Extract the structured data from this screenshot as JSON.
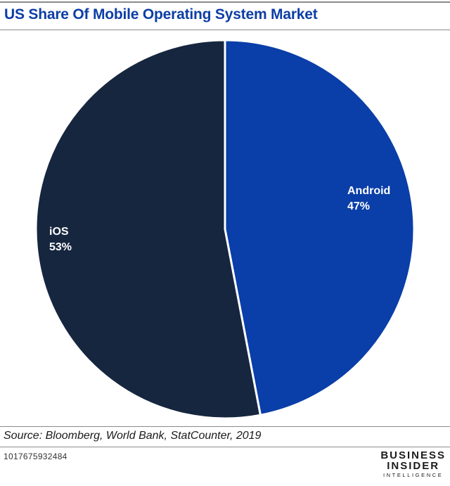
{
  "header": {
    "title": "US Share Of Mobile Operating System Market"
  },
  "chart_data": {
    "type": "pie",
    "title": "US Share Of Mobile Operating System Market",
    "slices": [
      {
        "label": "Android",
        "value": 47,
        "value_label": "47%",
        "color": "#0a3ea8"
      },
      {
        "label": "iOS",
        "value": 53,
        "value_label": "53%",
        "color": "#16263f"
      }
    ],
    "start_angle_deg": 0,
    "direction": "clockwise",
    "separator_color": "#ffffff"
  },
  "footer": {
    "source": "Source: Bloomberg, World Bank, StatCounter, 2019",
    "chart_id": "1017675932484",
    "brand_line1": "BUSINESS",
    "brand_line2": "INSIDER",
    "brand_line3": "INTELLIGENCE"
  }
}
